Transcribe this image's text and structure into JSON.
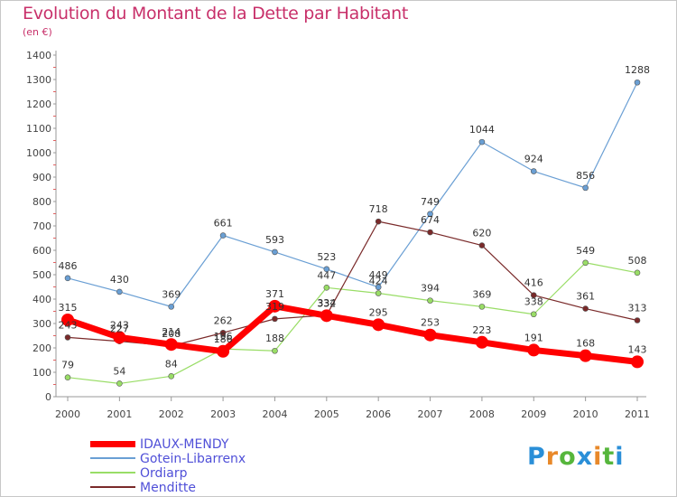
{
  "title": "Evolution du Montant de la Dette par Habitant",
  "subtitle": "(en €)",
  "logo": {
    "text": "Proxiti"
  },
  "chart_data": {
    "type": "line",
    "x": [
      "2000",
      "2001",
      "2002",
      "2003",
      "2004",
      "2005",
      "2006",
      "2007",
      "2008",
      "2009",
      "2010",
      "2011"
    ],
    "ylim": [
      0,
      1400
    ],
    "yticks": [
      0,
      100,
      200,
      300,
      400,
      500,
      600,
      700,
      800,
      900,
      1000,
      1100,
      1200,
      1300,
      1400
    ],
    "grid": false,
    "legend": "bottom-left",
    "series": [
      {
        "name": "IDAUX-MENDY",
        "color": "#ff0000",
        "width": 7,
        "marker": 7,
        "values": [
          315,
          243,
          214,
          186,
          371,
          332,
          295,
          253,
          223,
          191,
          168,
          143
        ]
      },
      {
        "name": "Gotein-Libarrenx",
        "color": "#6a9fd4",
        "width": 1.2,
        "marker": 3,
        "values": [
          486,
          430,
          369,
          661,
          593,
          523,
          449,
          749,
          1044,
          924,
          856,
          1288
        ]
      },
      {
        "name": "Ordiarp",
        "color": "#99dd66",
        "width": 1.2,
        "marker": 3,
        "values": [
          79,
          54,
          84,
          196,
          188,
          447,
          424,
          394,
          369,
          338,
          549,
          508
        ]
      },
      {
        "name": "Menditte",
        "color": "#7a2a2a",
        "width": 1.2,
        "marker": 3,
        "values": [
          243,
          227,
          208,
          262,
          319,
          334,
          718,
          674,
          620,
          416,
          361,
          313
        ]
      }
    ]
  }
}
